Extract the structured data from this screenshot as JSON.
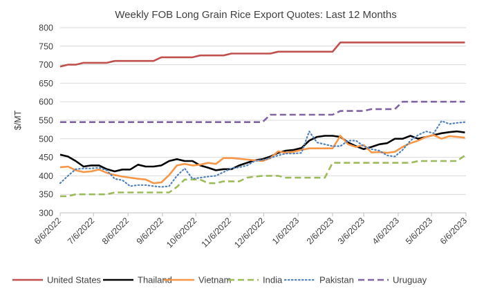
{
  "chart_data": {
    "type": "line",
    "title": "Weekly FOB Long Grain Rice Export Quotes: Last 12 Months",
    "ylabel": "$/MT",
    "xlabel": "",
    "ylim": [
      300,
      800
    ],
    "yticks": [
      300,
      350,
      400,
      450,
      500,
      550,
      600,
      650,
      700,
      750,
      800
    ],
    "xlim": [
      "2022-06-06",
      "2023-06-06"
    ],
    "xticks": [
      "2022-06-06",
      "2022-07-06",
      "2022-08-06",
      "2022-09-06",
      "2022-10-06",
      "2022-11-06",
      "2022-12-06",
      "2023-01-06",
      "2023-02-06",
      "2023-03-06",
      "2023-04-06",
      "2023-05-06",
      "2023-06-06"
    ],
    "xtick_labels": [
      "6/6/2022",
      "7/6/2022",
      "8/6/2022",
      "9/6/2022",
      "10/6/2022",
      "11/6/2022",
      "12/6/2022",
      "1/6/2023",
      "2/6/2023",
      "3/6/2023",
      "4/6/2023",
      "5/6/2023",
      "6/6/2023"
    ],
    "grid": "horizontal",
    "legend_position": "bottom",
    "series": [
      {
        "name": "United States",
        "color": "#C0504D",
        "dash": "solid",
        "x": [
          "2022-06-06",
          "2022-06-13",
          "2022-06-20",
          "2022-06-27",
          "2022-07-04",
          "2022-07-11",
          "2022-07-18",
          "2022-07-25",
          "2022-08-01",
          "2022-08-08",
          "2022-08-15",
          "2022-08-22",
          "2022-08-29",
          "2022-09-05",
          "2022-09-12",
          "2022-09-19",
          "2022-09-26",
          "2022-10-03",
          "2022-10-10",
          "2022-10-17",
          "2022-10-24",
          "2022-10-31",
          "2022-11-07",
          "2022-11-14",
          "2022-11-21",
          "2022-11-28",
          "2022-12-05",
          "2022-12-12",
          "2022-12-19",
          "2022-12-26",
          "2023-01-02",
          "2023-01-09",
          "2023-01-16",
          "2023-01-23",
          "2023-01-30",
          "2023-02-06",
          "2023-02-13",
          "2023-02-20",
          "2023-02-27",
          "2023-03-06",
          "2023-03-13",
          "2023-03-20",
          "2023-03-27",
          "2023-04-03",
          "2023-04-10",
          "2023-04-17",
          "2023-04-24",
          "2023-05-01",
          "2023-05-08",
          "2023-05-15",
          "2023-05-22",
          "2023-05-29",
          "2023-06-05"
        ],
        "values": [
          695,
          700,
          700,
          705,
          705,
          705,
          705,
          710,
          710,
          710,
          710,
          710,
          710,
          720,
          720,
          720,
          720,
          720,
          725,
          725,
          725,
          725,
          730,
          730,
          730,
          730,
          730,
          730,
          735,
          735,
          735,
          735,
          735,
          735,
          735,
          735,
          760,
          760,
          760,
          760,
          760,
          760,
          760,
          760,
          760,
          760,
          760,
          760,
          760,
          760,
          760,
          760,
          760
        ]
      },
      {
        "name": "Thailand",
        "color": "#000000",
        "dash": "solid",
        "x": [
          "2022-06-06",
          "2022-06-13",
          "2022-06-20",
          "2022-06-27",
          "2022-07-04",
          "2022-07-11",
          "2022-07-18",
          "2022-07-25",
          "2022-08-01",
          "2022-08-08",
          "2022-08-15",
          "2022-08-22",
          "2022-08-29",
          "2022-09-05",
          "2022-09-12",
          "2022-09-19",
          "2022-09-26",
          "2022-10-03",
          "2022-10-10",
          "2022-10-17",
          "2022-10-24",
          "2022-10-31",
          "2022-11-07",
          "2022-11-14",
          "2022-11-21",
          "2022-11-28",
          "2022-12-05",
          "2022-12-12",
          "2022-12-19",
          "2022-12-26",
          "2023-01-02",
          "2023-01-09",
          "2023-01-16",
          "2023-01-23",
          "2023-01-30",
          "2023-02-06",
          "2023-02-13",
          "2023-02-20",
          "2023-02-27",
          "2023-03-06",
          "2023-03-13",
          "2023-03-20",
          "2023-03-27",
          "2023-04-03",
          "2023-04-10",
          "2023-04-17",
          "2023-04-24",
          "2023-05-01",
          "2023-05-08",
          "2023-05-15",
          "2023-05-22",
          "2023-05-29",
          "2023-06-05"
        ],
        "values": [
          457,
          452,
          440,
          425,
          428,
          428,
          418,
          412,
          417,
          417,
          430,
          425,
          425,
          428,
          440,
          445,
          440,
          440,
          428,
          422,
          415,
          418,
          418,
          428,
          435,
          442,
          445,
          452,
          462,
          468,
          470,
          475,
          495,
          505,
          508,
          508,
          505,
          490,
          480,
          472,
          478,
          485,
          488,
          500,
          500,
          508,
          500,
          505,
          510,
          515,
          518,
          520,
          517
        ]
      },
      {
        "name": "Vietnam",
        "color": "#F79646",
        "dash": "solid",
        "x": [
          "2022-06-06",
          "2022-06-13",
          "2022-06-20",
          "2022-06-27",
          "2022-07-04",
          "2022-07-11",
          "2022-07-18",
          "2022-07-25",
          "2022-08-01",
          "2022-08-08",
          "2022-08-15",
          "2022-08-22",
          "2022-08-29",
          "2022-09-05",
          "2022-09-12",
          "2022-09-19",
          "2022-09-26",
          "2022-10-03",
          "2022-10-10",
          "2022-10-17",
          "2022-10-24",
          "2022-10-31",
          "2022-11-07",
          "2022-11-14",
          "2022-11-21",
          "2022-11-28",
          "2022-12-05",
          "2022-12-12",
          "2022-12-19",
          "2022-12-26",
          "2023-01-02",
          "2023-01-09",
          "2023-01-16",
          "2023-01-23",
          "2023-01-30",
          "2023-02-06",
          "2023-02-13",
          "2023-02-20",
          "2023-02-27",
          "2023-03-06",
          "2023-03-13",
          "2023-03-20",
          "2023-03-27",
          "2023-04-03",
          "2023-04-10",
          "2023-04-17",
          "2023-04-24",
          "2023-05-01",
          "2023-05-08",
          "2023-05-15",
          "2023-05-22",
          "2023-05-29",
          "2023-06-05"
        ],
        "values": [
          423,
          425,
          415,
          410,
          412,
          417,
          408,
          402,
          398,
          395,
          392,
          390,
          380,
          382,
          402,
          428,
          432,
          428,
          430,
          435,
          432,
          448,
          448,
          446,
          444,
          442,
          440,
          448,
          466,
          462,
          465,
          470,
          474,
          474,
          474,
          474,
          508,
          485,
          478,
          483,
          463,
          464,
          462,
          465,
          478,
          488,
          495,
          505,
          510,
          500,
          507,
          505,
          503
        ]
      },
      {
        "name": "India",
        "color": "#9BBB59",
        "dash": "dashed",
        "x": [
          "2022-06-06",
          "2022-06-13",
          "2022-06-20",
          "2022-06-27",
          "2022-07-04",
          "2022-07-11",
          "2022-07-18",
          "2022-07-25",
          "2022-08-01",
          "2022-08-08",
          "2022-08-15",
          "2022-08-22",
          "2022-08-29",
          "2022-09-05",
          "2022-09-12",
          "2022-09-19",
          "2022-09-26",
          "2022-10-03",
          "2022-10-10",
          "2022-10-17",
          "2022-10-24",
          "2022-10-31",
          "2022-11-07",
          "2022-11-14",
          "2022-11-21",
          "2022-11-28",
          "2022-12-05",
          "2022-12-12",
          "2022-12-19",
          "2022-12-26",
          "2023-01-02",
          "2023-01-09",
          "2023-01-16",
          "2023-01-23",
          "2023-01-30",
          "2023-02-06",
          "2023-02-13",
          "2023-02-20",
          "2023-02-27",
          "2023-03-06",
          "2023-03-13",
          "2023-03-20",
          "2023-03-27",
          "2023-04-03",
          "2023-04-10",
          "2023-04-17",
          "2023-04-24",
          "2023-05-01",
          "2023-05-08",
          "2023-05-15",
          "2023-05-22",
          "2023-05-29",
          "2023-06-05"
        ],
        "values": [
          345,
          345,
          350,
          350,
          350,
          350,
          350,
          355,
          355,
          355,
          355,
          355,
          355,
          355,
          355,
          370,
          390,
          390,
          390,
          380,
          380,
          385,
          385,
          385,
          395,
          398,
          400,
          400,
          400,
          395,
          395,
          395,
          395,
          395,
          395,
          435,
          435,
          435,
          435,
          435,
          435,
          435,
          435,
          435,
          435,
          435,
          440,
          440,
          440,
          440,
          440,
          440,
          455
        ]
      },
      {
        "name": "Pakistan",
        "color": "#4F81BD",
        "dash": "dotted",
        "x": [
          "2022-06-06",
          "2022-06-13",
          "2022-06-20",
          "2022-06-27",
          "2022-07-04",
          "2022-07-11",
          "2022-07-18",
          "2022-07-25",
          "2022-08-01",
          "2022-08-08",
          "2022-08-15",
          "2022-08-22",
          "2022-08-29",
          "2022-09-05",
          "2022-09-12",
          "2022-09-19",
          "2022-09-26",
          "2022-10-03",
          "2022-10-10",
          "2022-10-17",
          "2022-10-24",
          "2022-10-31",
          "2022-11-07",
          "2022-11-14",
          "2022-11-21",
          "2022-11-28",
          "2022-12-05",
          "2022-12-12",
          "2022-12-19",
          "2022-12-26",
          "2023-01-02",
          "2023-01-09",
          "2023-01-16",
          "2023-01-23",
          "2023-01-30",
          "2023-02-06",
          "2023-02-13",
          "2023-02-20",
          "2023-02-27",
          "2023-03-06",
          "2023-03-13",
          "2023-03-20",
          "2023-03-27",
          "2023-04-03",
          "2023-04-10",
          "2023-04-17",
          "2023-04-24",
          "2023-05-01",
          "2023-05-08",
          "2023-05-15",
          "2023-05-22",
          "2023-05-29",
          "2023-06-05"
        ],
        "values": [
          380,
          400,
          418,
          420,
          420,
          422,
          415,
          392,
          388,
          372,
          375,
          375,
          372,
          370,
          372,
          400,
          420,
          392,
          395,
          398,
          400,
          410,
          420,
          423,
          428,
          440,
          443,
          448,
          455,
          460,
          460,
          462,
          520,
          490,
          485,
          480,
          480,
          495,
          495,
          480,
          472,
          468,
          455,
          452,
          470,
          495,
          510,
          520,
          515,
          548,
          540,
          543,
          545
        ]
      },
      {
        "name": "Uruguay",
        "color": "#8064A2",
        "dash": "dashed",
        "x": [
          "2022-06-06",
          "2022-06-13",
          "2022-06-20",
          "2022-06-27",
          "2022-07-04",
          "2022-07-11",
          "2022-07-18",
          "2022-07-25",
          "2022-08-01",
          "2022-08-08",
          "2022-08-15",
          "2022-08-22",
          "2022-08-29",
          "2022-09-05",
          "2022-09-12",
          "2022-09-19",
          "2022-09-26",
          "2022-10-03",
          "2022-10-10",
          "2022-10-17",
          "2022-10-24",
          "2022-10-31",
          "2022-11-07",
          "2022-11-14",
          "2022-11-21",
          "2022-11-28",
          "2022-12-05",
          "2022-12-12",
          "2022-12-19",
          "2022-12-26",
          "2023-01-02",
          "2023-01-09",
          "2023-01-16",
          "2023-01-23",
          "2023-01-30",
          "2023-02-06",
          "2023-02-13",
          "2023-02-20",
          "2023-02-27",
          "2023-03-06",
          "2023-03-13",
          "2023-03-20",
          "2023-03-27",
          "2023-04-03",
          "2023-04-10",
          "2023-04-17",
          "2023-04-24",
          "2023-05-01",
          "2023-05-08",
          "2023-05-15",
          "2023-05-22",
          "2023-05-29",
          "2023-06-05"
        ],
        "values": [
          545,
          545,
          545,
          545,
          545,
          545,
          545,
          545,
          545,
          545,
          545,
          545,
          545,
          545,
          545,
          545,
          545,
          545,
          545,
          545,
          545,
          545,
          545,
          545,
          545,
          545,
          545,
          565,
          565,
          565,
          565,
          565,
          565,
          565,
          565,
          565,
          575,
          575,
          575,
          575,
          580,
          580,
          580,
          580,
          600,
          600,
          600,
          600,
          600,
          600,
          600,
          600,
          600
        ]
      }
    ]
  }
}
